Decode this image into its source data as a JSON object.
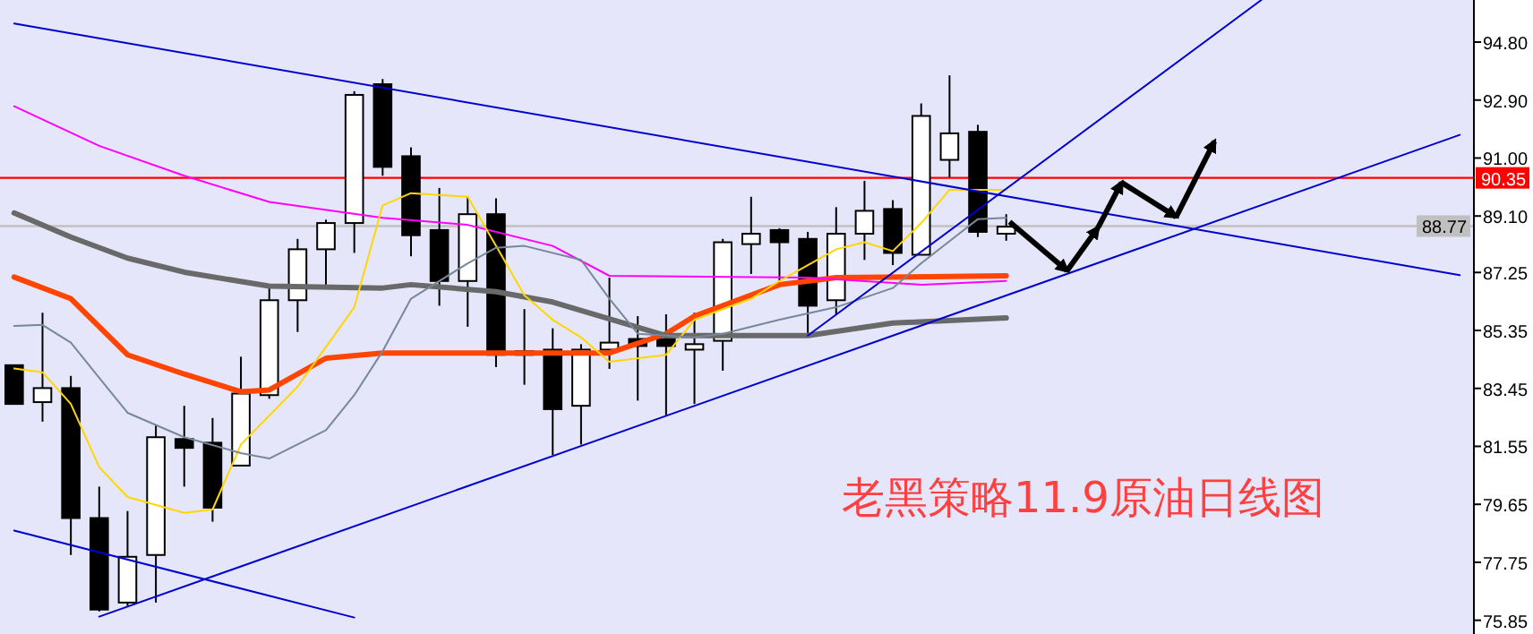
{
  "chart_data": {
    "type": "candlestick",
    "title": "老黑策略11.9原油日线图",
    "categories": [
      null,
      null,
      null,
      null,
      null,
      null,
      null,
      null,
      null,
      null,
      null,
      null,
      null,
      null,
      null,
      null,
      null,
      null,
      null,
      null,
      null,
      null,
      null,
      null,
      null,
      null,
      null,
      null,
      null,
      null,
      null,
      null,
      null,
      null,
      null,
      null,
      null,
      null,
      null,
      null,
      null,
      null,
      null,
      null,
      null,
      null,
      null,
      null,
      null,
      null,
      null,
      null
    ],
    "ohlc": [
      [
        84.21,
        84.21,
        82.94,
        82.94
      ],
      [
        83.0,
        85.93,
        82.36,
        83.46
      ],
      [
        83.46,
        83.86,
        77.99,
        79.2
      ],
      [
        79.2,
        80.23,
        76.14,
        76.2
      ],
      [
        76.43,
        79.43,
        76.32,
        77.93
      ],
      [
        77.99,
        82.25,
        76.43,
        81.85
      ],
      [
        81.79,
        82.88,
        80.23,
        81.5
      ],
      [
        81.67,
        82.48,
        79.08,
        79.54
      ],
      [
        80.92,
        84.49,
        80.92,
        83.28
      ],
      [
        83.23,
        86.8,
        83.11,
        86.34
      ],
      [
        86.34,
        88.35,
        85.3,
        88.01
      ],
      [
        88.01,
        88.98,
        86.85,
        88.87
      ],
      [
        88.87,
        93.19,
        87.89,
        93.07
      ],
      [
        93.42,
        93.59,
        90.42,
        90.71
      ],
      [
        91.06,
        91.35,
        87.78,
        88.47
      ],
      [
        88.64,
        90.02,
        86.16,
        86.97
      ],
      [
        86.97,
        89.73,
        85.47,
        89.16
      ],
      [
        89.16,
        89.68,
        84.15,
        84.55
      ],
      [
        84.67,
        86.05,
        83.57,
        84.55
      ],
      [
        84.72,
        85.42,
        81.27,
        82.77
      ],
      [
        82.88,
        84.9,
        81.61,
        84.72
      ],
      [
        84.72,
        87.08,
        84.09,
        84.95
      ],
      [
        85.07,
        85.82,
        83.05,
        84.84
      ],
      [
        85.07,
        85.88,
        82.54,
        84.84
      ],
      [
        84.72,
        85.93,
        82.94,
        84.9
      ],
      [
        85.01,
        88.35,
        84.03,
        88.24
      ],
      [
        88.18,
        89.73,
        87.2,
        88.52
      ],
      [
        88.64,
        88.7,
        86.97,
        88.24
      ],
      [
        88.35,
        88.58,
        85.24,
        86.16
      ],
      [
        86.34,
        89.39,
        85.88,
        88.52
      ],
      [
        88.52,
        90.25,
        87.66,
        89.27
      ],
      [
        89.33,
        89.62,
        87.49,
        87.89
      ],
      [
        87.83,
        92.79,
        87.83,
        92.38
      ],
      [
        90.94,
        93.71,
        90.37,
        91.81
      ],
      [
        91.86,
        92.09,
        88.41,
        88.58
      ],
      [
        88.52,
        89.16,
        88.29,
        88.75
      ],
      null,
      null,
      null,
      null,
      null,
      null,
      null,
      null,
      null,
      null,
      null,
      null,
      null,
      null,
      null,
      null
    ],
    "series": [
      {
        "type": "line",
        "color": "#ff4500",
        "values": [
          87.1,
          null,
          86.39,
          null,
          84.55,
          null,
          83.92,
          null,
          83.34,
          83.4,
          null,
          84.44,
          null,
          84.61,
          null,
          null,
          null,
          84.61,
          null,
          null,
          null,
          84.61,
          null,
          85.24,
          85.82,
          null,
          null,
          86.85,
          null,
          87.08,
          null,
          null,
          null,
          null,
          null,
          87.14,
          null,
          null,
          null,
          null,
          null,
          null,
          null,
          null,
          null,
          null,
          null,
          null,
          null,
          null,
          null,
          null
        ]
      },
      {
        "type": "line",
        "color": "#696969",
        "values": [
          89.2,
          null,
          88.41,
          null,
          87.72,
          null,
          87.26,
          null,
          null,
          86.8,
          null,
          null,
          null,
          86.74,
          86.85,
          null,
          null,
          86.62,
          null,
          86.28,
          null,
          null,
          null,
          85.18,
          null,
          null,
          null,
          null,
          85.18,
          null,
          null,
          85.59,
          null,
          null,
          null,
          85.76,
          null,
          null,
          null,
          null,
          null,
          null,
          null,
          null,
          null,
          null,
          null,
          null,
          null,
          null,
          null,
          null
        ]
      },
      {
        "type": "line",
        "color": "#ff00ff",
        "values": [
          92.7,
          null,
          null,
          91.4,
          null,
          null,
          90.42,
          null,
          null,
          89.56,
          null,
          null,
          null,
          89.04,
          null,
          null,
          88.81,
          null,
          null,
          88.12,
          null,
          87.14,
          null,
          null,
          null,
          null,
          null,
          null,
          87.08,
          null,
          null,
          null,
          86.85,
          null,
          null,
          86.97,
          null,
          null,
          null,
          null,
          null,
          null,
          null,
          null,
          null,
          null,
          null,
          null,
          null,
          null,
          null,
          null
        ]
      },
      {
        "type": "line",
        "color": "#ffd700",
        "values": [
          84.1,
          83.98,
          82.94,
          80.87,
          79.89,
          null,
          79.37,
          79.48,
          81.61,
          null,
          83.51,
          null,
          86.11,
          89.45,
          89.85,
          null,
          89.73,
          88.12,
          86.5,
          85.7,
          85.12,
          84.32,
          null,
          84.55,
          85.7,
          null,
          86.39,
          86.97,
          null,
          88.01,
          88.24,
          87.95,
          88.87,
          89.96,
          null,
          89.96,
          null,
          null,
          null,
          null,
          null,
          null,
          null,
          null,
          null,
          null,
          null,
          null,
          null,
          null,
          null,
          null
        ]
      },
      {
        "type": "line",
        "color": "#778899",
        "values": [
          85.5,
          85.53,
          84.95,
          83.8,
          82.65,
          null,
          81.85,
          null,
          81.33,
          81.15,
          null,
          82.08,
          83.23,
          84.67,
          86.39,
          null,
          87.55,
          88.06,
          88.12,
          null,
          87.66,
          86.39,
          85.24,
          null,
          85.12,
          85.24,
          null,
          85.7,
          null,
          86.11,
          null,
          86.74,
          87.55,
          null,
          89.0,
          89.04,
          null,
          null,
          null,
          null,
          null,
          null,
          null,
          null,
          null,
          null,
          null,
          null,
          null,
          null,
          null,
          null
        ]
      },
      {
        "type": "line",
        "color": "#0000cd",
        "values": [
          95.41,
          null,
          null,
          null,
          null,
          null,
          null,
          null,
          null,
          null,
          null,
          null,
          null,
          null,
          null,
          null,
          null,
          null,
          null,
          null,
          null,
          null,
          null,
          null,
          null,
          null,
          null,
          null,
          null,
          null,
          null,
          null,
          null,
          null,
          null,
          null,
          null,
          null,
          null,
          null,
          null,
          null,
          null,
          null,
          null,
          null,
          null,
          null,
          null,
          null,
          null,
          87.16
        ]
      },
      {
        "type": "line",
        "color": "#0000cd",
        "values": [
          null,
          null,
          null,
          75.97,
          null,
          null,
          null,
          null,
          null,
          null,
          null,
          null,
          null,
          null,
          null,
          null,
          null,
          null,
          null,
          null,
          null,
          null,
          null,
          null,
          null,
          null,
          null,
          null,
          null,
          null,
          null,
          null,
          null,
          null,
          null,
          null,
          null,
          null,
          null,
          null,
          null,
          null,
          null,
          null,
          null,
          null,
          null,
          null,
          null,
          null,
          null,
          91.76
        ]
      },
      {
        "type": "line",
        "color": "#0000cd",
        "values": [
          null,
          null,
          null,
          null,
          null,
          null,
          null,
          null,
          null,
          null,
          null,
          null,
          null,
          null,
          null,
          null,
          null,
          null,
          null,
          null,
          null,
          null,
          null,
          null,
          null,
          null,
          null,
          null,
          85.18,
          null,
          null,
          null,
          null,
          null,
          null,
          null,
          null,
          null,
          null,
          null,
          null,
          null,
          null,
          null,
          96.18,
          null,
          null,
          null,
          null,
          null,
          null,
          null
        ]
      },
      {
        "type": "line",
        "color": "#0000cd",
        "values": [
          78.79,
          null,
          null,
          null,
          null,
          null,
          null,
          null,
          null,
          null,
          null,
          null,
          75.94,
          null,
          null,
          null,
          null,
          null,
          null,
          null,
          null,
          null,
          null,
          null,
          null,
          null,
          null,
          null,
          null,
          null,
          null,
          null,
          null,
          null,
          null,
          null,
          null,
          null,
          null,
          null,
          null,
          null,
          null,
          null,
          null,
          null,
          null,
          null,
          null,
          null,
          null,
          null
        ]
      }
    ],
    "ylim": [
      75.4,
      96.18
    ],
    "yticks": [
      {
        "value": 94.8,
        "label": "94.80"
      },
      {
        "value": 92.9,
        "label": "92.90"
      },
      {
        "value": 91.0,
        "label": "91.00"
      },
      {
        "value": 89.1,
        "label": "89.10"
      },
      {
        "value": 87.25,
        "label": "87.25"
      },
      {
        "value": 85.35,
        "label": "85.35"
      },
      {
        "value": 83.45,
        "label": "83.45"
      },
      {
        "value": 81.55,
        "label": "81.55"
      },
      {
        "value": 79.65,
        "label": "79.65"
      },
      {
        "value": 77.75,
        "label": "77.75"
      },
      {
        "value": 75.85,
        "label": "75.85"
      }
    ],
    "ref_lines": [
      {
        "axis": "y",
        "value": 90.35,
        "label": "90.35",
        "color": "#ff0000"
      },
      {
        "axis": "y",
        "value": 88.77,
        "label": "88.77",
        "color": "#c0c0c0"
      }
    ]
  }
}
